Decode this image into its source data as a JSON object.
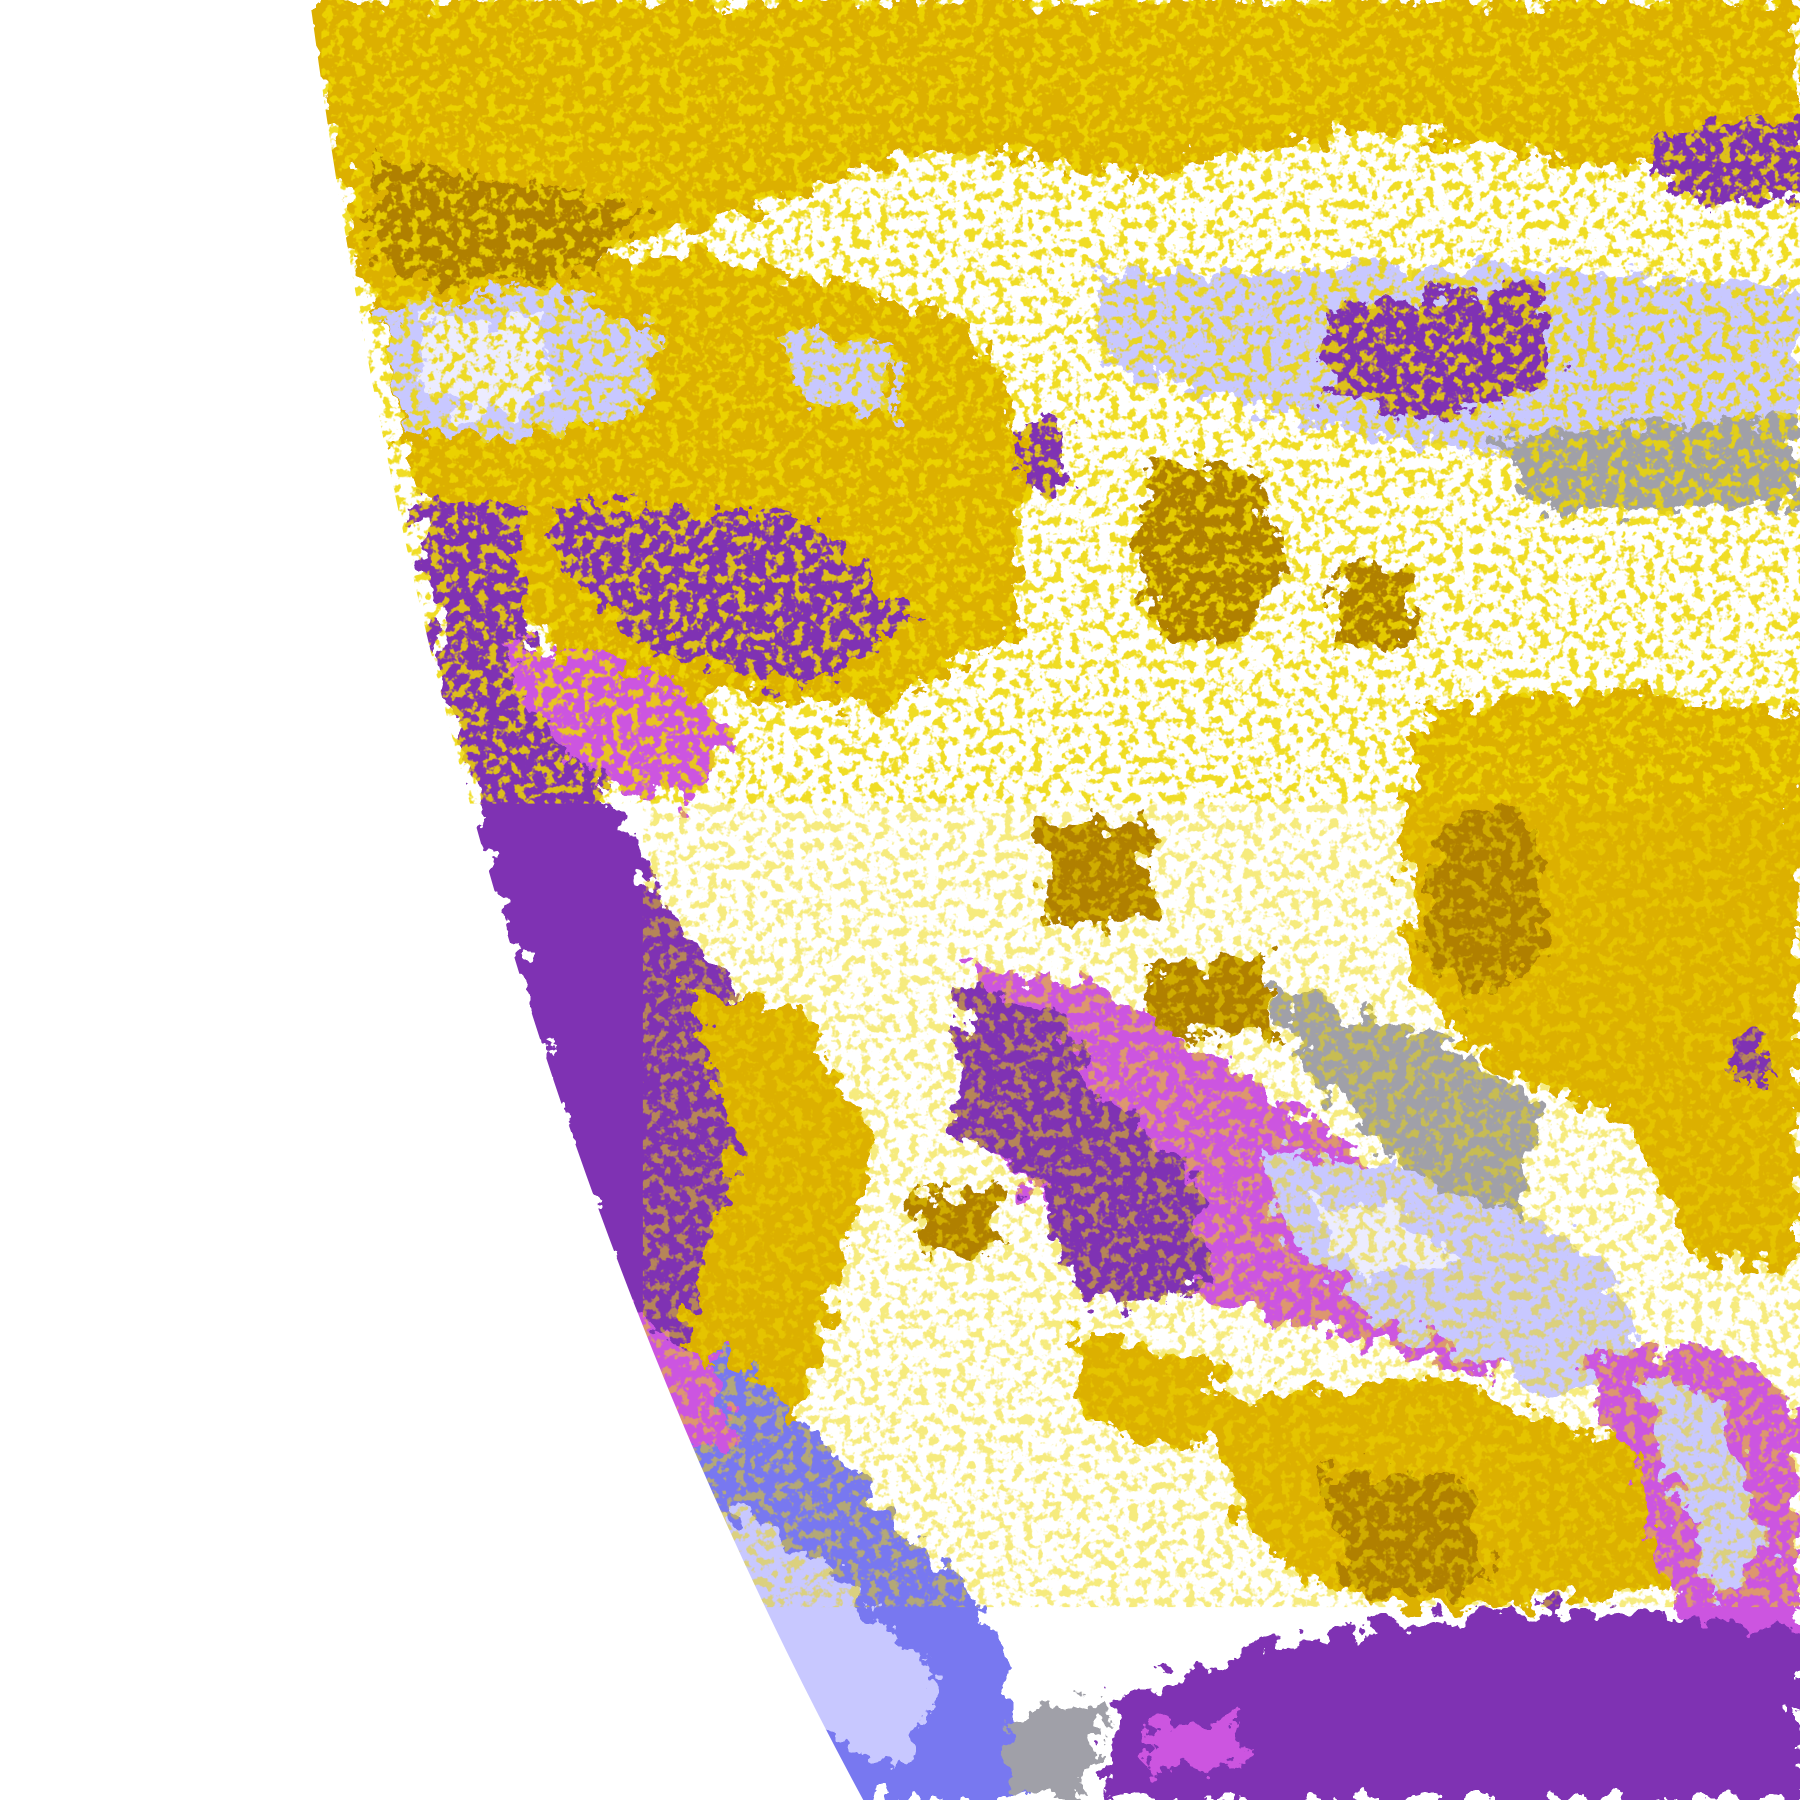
{
  "map": {
    "palette": {
      "space": "#ffffff",
      "clear": "#ffffff",
      "gold": "#dcb000",
      "dark_gold": "#b08000",
      "purple": "#7f33b3",
      "magenta": "#cc55e0",
      "lavender": "#c8c8ff",
      "pale_lavender": "#ececff",
      "blue": "#7878f0",
      "gray": "#a0a0a8"
    }
  }
}
